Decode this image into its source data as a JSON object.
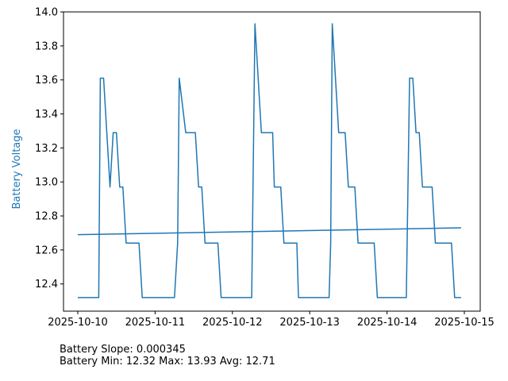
{
  "chart_data": {
    "type": "line",
    "title": "",
    "xlabel": "",
    "ylabel": "Battery Voltage",
    "ylabel_color": "#1f77b4",
    "line_color": "#1f77b4",
    "grid": false,
    "legend": "none",
    "xlim": [
      "2025-10-10",
      "2025-10-15"
    ],
    "ylim": [
      12.24,
      14.0
    ],
    "x_ticks": [
      "2025-10-10",
      "2025-10-11",
      "2025-10-12",
      "2025-10-13",
      "2025-10-14",
      "2025-10-15"
    ],
    "y_ticks": [
      "12.4",
      "12.6",
      "12.8",
      "13.0",
      "13.2",
      "13.4",
      "13.6",
      "13.8",
      "14.0"
    ],
    "series": [
      {
        "name": "",
        "points": [
          [
            "2025-10-10 00:00",
            12.32
          ],
          [
            "2025-10-10 06:30",
            12.32
          ],
          [
            "2025-10-10 07:00",
            13.61
          ],
          [
            "2025-10-10 08:00",
            13.61
          ],
          [
            "2025-10-10 10:00",
            12.97
          ],
          [
            "2025-10-10 11:00",
            13.29
          ],
          [
            "2025-10-10 12:00",
            13.29
          ],
          [
            "2025-10-10 13:00",
            12.97
          ],
          [
            "2025-10-10 14:00",
            12.97
          ],
          [
            "2025-10-10 15:00",
            12.64
          ],
          [
            "2025-10-10 19:00",
            12.64
          ],
          [
            "2025-10-10 20:00",
            12.32
          ],
          [
            "2025-10-11 06:00",
            12.32
          ],
          [
            "2025-10-11 07:00",
            12.64
          ],
          [
            "2025-10-11 07:30",
            13.61
          ],
          [
            "2025-10-11 09:30",
            13.29
          ],
          [
            "2025-10-11 12:30",
            13.29
          ],
          [
            "2025-10-11 13:30",
            12.97
          ],
          [
            "2025-10-11 14:30",
            12.97
          ],
          [
            "2025-10-11 15:30",
            12.64
          ],
          [
            "2025-10-11 19:30",
            12.64
          ],
          [
            "2025-10-11 20:30",
            12.32
          ],
          [
            "2025-10-12 06:00",
            12.32
          ],
          [
            "2025-10-12 07:00",
            13.93
          ],
          [
            "2025-10-12 09:00",
            13.29
          ],
          [
            "2025-10-12 12:30",
            13.29
          ],
          [
            "2025-10-12 13:00",
            12.97
          ],
          [
            "2025-10-12 15:00",
            12.97
          ],
          [
            "2025-10-12 16:00",
            12.64
          ],
          [
            "2025-10-12 20:00",
            12.64
          ],
          [
            "2025-10-12 20:30",
            12.32
          ],
          [
            "2025-10-13 06:00",
            12.32
          ],
          [
            "2025-10-13 06:30",
            12.64
          ],
          [
            "2025-10-13 07:00",
            13.93
          ],
          [
            "2025-10-13 09:00",
            13.29
          ],
          [
            "2025-10-13 11:00",
            13.29
          ],
          [
            "2025-10-13 12:00",
            12.97
          ],
          [
            "2025-10-13 14:00",
            12.97
          ],
          [
            "2025-10-13 15:00",
            12.64
          ],
          [
            "2025-10-13 20:00",
            12.64
          ],
          [
            "2025-10-13 21:00",
            12.32
          ],
          [
            "2025-10-14 06:00",
            12.32
          ],
          [
            "2025-10-14 07:00",
            13.61
          ],
          [
            "2025-10-14 08:00",
            13.61
          ],
          [
            "2025-10-14 09:00",
            13.29
          ],
          [
            "2025-10-14 10:00",
            13.29
          ],
          [
            "2025-10-14 11:00",
            12.97
          ],
          [
            "2025-10-14 14:00",
            12.97
          ],
          [
            "2025-10-14 15:00",
            12.64
          ],
          [
            "2025-10-14 20:00",
            12.64
          ],
          [
            "2025-10-14 21:00",
            12.32
          ],
          [
            "2025-10-14 23:00",
            12.32
          ]
        ]
      }
    ],
    "trend_line": {
      "points": [
        [
          "2025-10-10 00:00",
          12.69
        ],
        [
          "2025-10-14 23:00",
          12.73
        ]
      ]
    }
  },
  "stats": {
    "slope_line": "Battery Slope: 0.000345",
    "minmax_line": "Battery Min: 12.32 Max: 13.93 Avg: 12.71"
  }
}
